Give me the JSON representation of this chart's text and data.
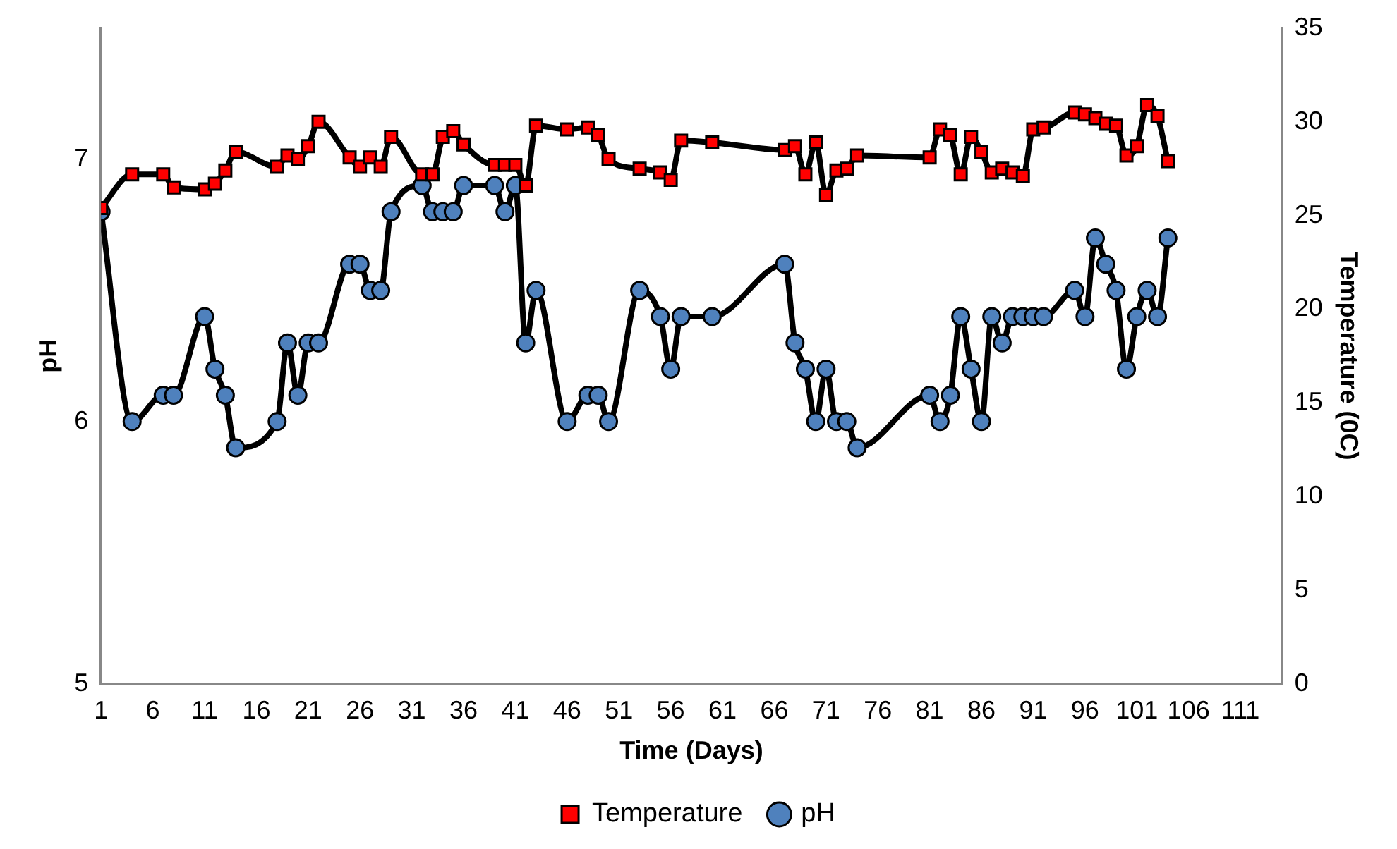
{
  "chart_data": {
    "type": "line",
    "xlabel": "Time (Days)",
    "ylabel": "pH",
    "y2label": "Temperature (0C)",
    "xlim": [
      1,
      115
    ],
    "xticks": [
      1,
      6,
      11,
      16,
      21,
      26,
      31,
      36,
      41,
      46,
      51,
      56,
      61,
      66,
      71,
      76,
      81,
      86,
      91,
      96,
      101,
      106,
      111
    ],
    "ylim": [
      5,
      7.5
    ],
    "yticks": [
      5,
      6,
      7
    ],
    "y2lim": [
      0,
      35
    ],
    "y2ticks": [
      0,
      5,
      10,
      15,
      20,
      25,
      30,
      35
    ],
    "grid": false,
    "legend": "bottom",
    "line_style": "solid",
    "series": [
      {
        "name": "Temperature",
        "color": "#ff0000",
        "axis": "y2",
        "marker": "square",
        "x": [
          1,
          4,
          7,
          8,
          11,
          12,
          13,
          14,
          18,
          19,
          20,
          21,
          22,
          25,
          26,
          27,
          28,
          29,
          32,
          33,
          34,
          35,
          36,
          39,
          40,
          41,
          42,
          43,
          46,
          48,
          49,
          50,
          53,
          55,
          56,
          57,
          60,
          67,
          68,
          69,
          70,
          71,
          72,
          73,
          74,
          81,
          82,
          83,
          84,
          85,
          86,
          87,
          88,
          89,
          90,
          91,
          92,
          95,
          96,
          97,
          98,
          99,
          100,
          101,
          102,
          103,
          104
        ],
        "values": [
          25.4,
          27.2,
          27.2,
          26.5,
          26.4,
          26.7,
          27.4,
          28.4,
          27.6,
          28.2,
          28.0,
          28.7,
          30.0,
          28.1,
          27.6,
          28.1,
          27.6,
          29.2,
          27.2,
          27.2,
          29.2,
          29.5,
          28.8,
          27.7,
          27.7,
          27.7,
          26.6,
          29.8,
          29.6,
          29.7,
          29.3,
          28.0,
          27.5,
          27.3,
          26.9,
          29.0,
          28.9,
          28.5,
          28.7,
          27.2,
          28.9,
          26.1,
          27.4,
          27.5,
          28.2,
          28.1,
          29.6,
          29.3,
          27.2,
          29.2,
          28.4,
          27.3,
          27.5,
          27.3,
          27.1,
          29.6,
          29.7,
          30.5,
          30.4,
          30.2,
          29.9,
          29.8,
          28.2,
          28.7,
          30.9,
          30.3,
          27.9
        ]
      },
      {
        "name": "pH",
        "color": "#4f81bd",
        "axis": "y",
        "marker": "circle",
        "x": [
          1,
          4,
          7,
          8,
          11,
          12,
          13,
          14,
          18,
          19,
          20,
          21,
          22,
          25,
          26,
          27,
          28,
          29,
          32,
          33,
          34,
          35,
          36,
          39,
          40,
          41,
          42,
          43,
          46,
          48,
          49,
          50,
          53,
          55,
          56,
          57,
          60,
          67,
          68,
          69,
          70,
          71,
          72,
          73,
          74,
          81,
          82,
          83,
          84,
          85,
          86,
          87,
          88,
          89,
          90,
          91,
          92,
          95,
          96,
          97,
          98,
          99,
          100,
          101,
          102,
          103,
          104
        ],
        "values": [
          6.8,
          6.0,
          6.1,
          6.1,
          6.4,
          6.2,
          6.1,
          5.9,
          6.0,
          6.3,
          6.1,
          6.3,
          6.3,
          6.6,
          6.6,
          6.5,
          6.5,
          6.8,
          6.9,
          6.8,
          6.8,
          6.8,
          6.9,
          6.9,
          6.8,
          6.9,
          6.3,
          6.5,
          6.0,
          6.1,
          6.1,
          6.0,
          6.5,
          6.4,
          6.2,
          6.4,
          6.4,
          6.6,
          6.3,
          6.2,
          6.0,
          6.2,
          6.0,
          6.0,
          5.9,
          6.1,
          6.0,
          6.1,
          6.4,
          6.2,
          6.0,
          6.4,
          6.3,
          6.4,
          6.4,
          6.4,
          6.4,
          6.5,
          6.4,
          6.7,
          6.6,
          6.5,
          6.2,
          6.4,
          6.5,
          6.4,
          6.7
        ]
      }
    ]
  }
}
